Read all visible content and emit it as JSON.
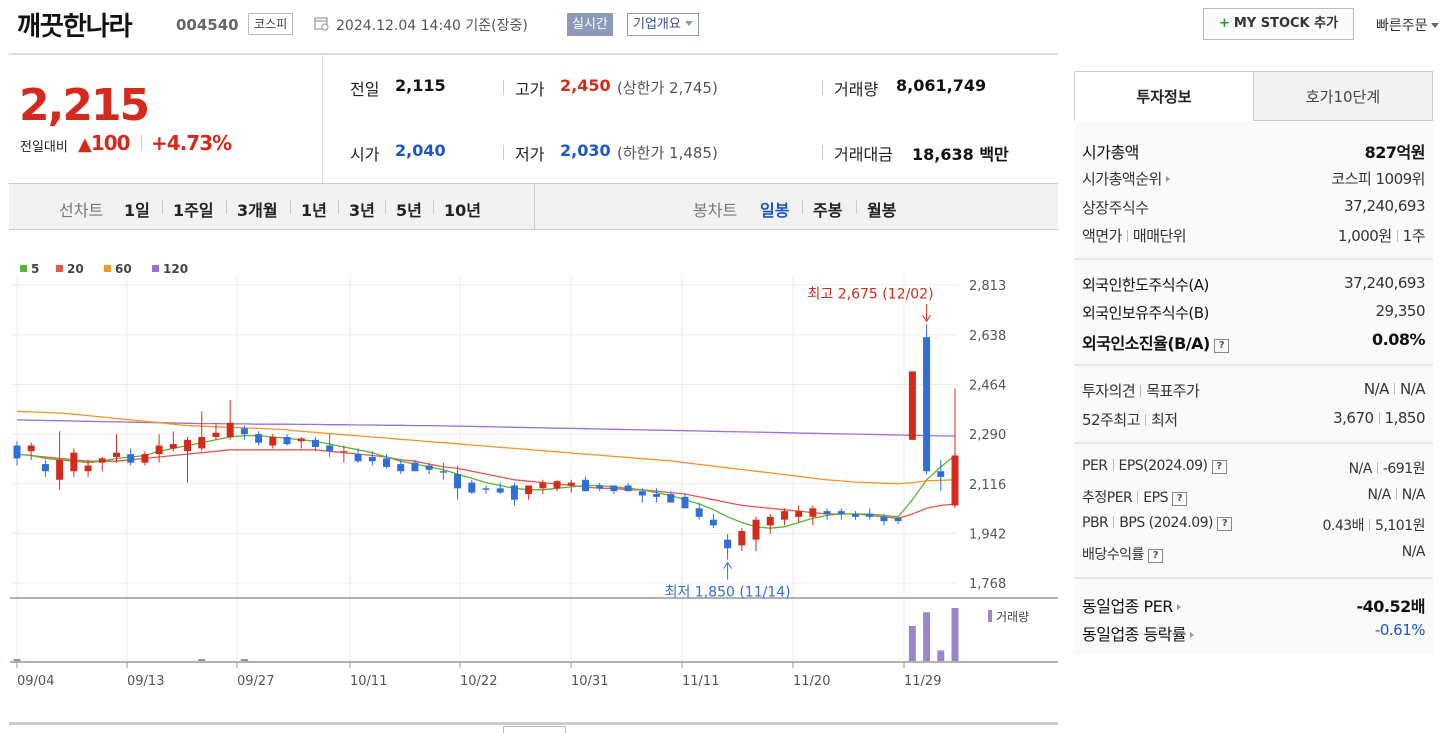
{
  "header": {
    "stock_name": "깨끗한나라",
    "stock_code": "004540",
    "market": "코스피",
    "date_text": "2024.12.04 14:40 기준(장중)",
    "realtime": "실시간",
    "company_overview": "기업개요",
    "mystock_plus": "+",
    "mystock_label": "MY STOCK 추가",
    "quick_order": "빠른주문"
  },
  "price": {
    "current": "2,215",
    "diff_label": "전일대비",
    "diff_arrow": "▲",
    "diff_value": "100",
    "diff_pct": "+4.73%"
  },
  "quote": {
    "prev_label": "전일",
    "prev_value": "2,115",
    "open_label": "시가",
    "open_value": "2,040",
    "high_label": "고가",
    "high_value": "2,450",
    "upper_limit": "(상한가 2,745)",
    "low_label": "저가",
    "low_value": "2,030",
    "lower_limit": "(하한가 1,485)",
    "volume_label": "거래량",
    "volume_value": "8,061,749",
    "amount_label": "거래대금",
    "amount_value": "18,638 백만"
  },
  "periods": {
    "line_label": "선차트",
    "items": [
      "1일",
      "1주일",
      "3개월",
      "1년",
      "3년",
      "5년",
      "10년"
    ],
    "candle_label": "봉차트",
    "candle_items": [
      "일봉",
      "주봉",
      "월봉"
    ],
    "candle_active": "일봉"
  },
  "chart_data": {
    "type": "candlestick",
    "legend": [
      {
        "name": "5",
        "color": "#5cb531"
      },
      {
        "name": "20",
        "color": "#e05a4f"
      },
      {
        "name": "60",
        "color": "#f0952a"
      },
      {
        "name": "120",
        "color": "#9b6fd3"
      }
    ],
    "y_ticks": [
      2813,
      2638,
      2464,
      2290,
      2116,
      1942,
      1768
    ],
    "y_range": [
      1768,
      2813
    ],
    "x_labels": [
      "09/04",
      "09/13",
      "09/27",
      "10/11",
      "10/22",
      "10/31",
      "11/11",
      "11/20",
      "11/29"
    ],
    "high_annotation": "최고 2,675 (12/02)",
    "low_annotation": "최저 1,850 (11/14)",
    "volume_label": "거래량",
    "candles": [
      {
        "o": 2250,
        "h": 2265,
        "l": 2180,
        "c": 2205
      },
      {
        "o": 2230,
        "h": 2260,
        "l": 2200,
        "c": 2250
      },
      {
        "o": 2185,
        "h": 2200,
        "l": 2140,
        "c": 2160
      },
      {
        "o": 2130,
        "h": 2300,
        "l": 2095,
        "c": 2200
      },
      {
        "o": 2160,
        "h": 2240,
        "l": 2140,
        "c": 2225
      },
      {
        "o": 2160,
        "h": 2200,
        "l": 2140,
        "c": 2180
      },
      {
        "o": 2190,
        "h": 2210,
        "l": 2160,
        "c": 2205
      },
      {
        "o": 2210,
        "h": 2290,
        "l": 2190,
        "c": 2225
      },
      {
        "o": 2220,
        "h": 2240,
        "l": 2180,
        "c": 2190
      },
      {
        "o": 2190,
        "h": 2230,
        "l": 2180,
        "c": 2220
      },
      {
        "o": 2220,
        "h": 2290,
        "l": 2190,
        "c": 2250
      },
      {
        "o": 2240,
        "h": 2300,
        "l": 2230,
        "c": 2255
      },
      {
        "o": 2230,
        "h": 2280,
        "l": 2120,
        "c": 2270
      },
      {
        "o": 2240,
        "h": 2370,
        "l": 2230,
        "c": 2280
      },
      {
        "o": 2280,
        "h": 2330,
        "l": 2270,
        "c": 2295
      },
      {
        "o": 2280,
        "h": 2410,
        "l": 2270,
        "c": 2330
      },
      {
        "o": 2310,
        "h": 2320,
        "l": 2270,
        "c": 2290
      },
      {
        "o": 2290,
        "h": 2300,
        "l": 2250,
        "c": 2260
      },
      {
        "o": 2250,
        "h": 2290,
        "l": 2240,
        "c": 2280
      },
      {
        "o": 2280,
        "h": 2290,
        "l": 2250,
        "c": 2255
      },
      {
        "o": 2265,
        "h": 2280,
        "l": 2240,
        "c": 2275
      },
      {
        "o": 2270,
        "h": 2280,
        "l": 2230,
        "c": 2245
      },
      {
        "o": 2250,
        "h": 2290,
        "l": 2210,
        "c": 2230
      },
      {
        "o": 2230,
        "h": 2250,
        "l": 2190,
        "c": 2230
      },
      {
        "o": 2220,
        "h": 2240,
        "l": 2190,
        "c": 2195
      },
      {
        "o": 2210,
        "h": 2230,
        "l": 2180,
        "c": 2195
      },
      {
        "o": 2205,
        "h": 2220,
        "l": 2170,
        "c": 2175
      },
      {
        "o": 2185,
        "h": 2200,
        "l": 2150,
        "c": 2160
      },
      {
        "o": 2190,
        "h": 2200,
        "l": 2160,
        "c": 2160
      },
      {
        "o": 2180,
        "h": 2190,
        "l": 2150,
        "c": 2165
      },
      {
        "o": 2160,
        "h": 2190,
        "l": 2130,
        "c": 2155
      },
      {
        "o": 2150,
        "h": 2180,
        "l": 2060,
        "c": 2100
      },
      {
        "o": 2120,
        "h": 2130,
        "l": 2080,
        "c": 2085
      },
      {
        "o": 2100,
        "h": 2110,
        "l": 2080,
        "c": 2095
      },
      {
        "o": 2100,
        "h": 2120,
        "l": 2080,
        "c": 2085
      },
      {
        "o": 2110,
        "h": 2120,
        "l": 2040,
        "c": 2060
      },
      {
        "o": 2080,
        "h": 2110,
        "l": 2060,
        "c": 2110
      },
      {
        "o": 2100,
        "h": 2130,
        "l": 2080,
        "c": 2120
      },
      {
        "o": 2100,
        "h": 2130,
        "l": 2090,
        "c": 2125
      },
      {
        "o": 2110,
        "h": 2130,
        "l": 2085,
        "c": 2120
      },
      {
        "o": 2130,
        "h": 2140,
        "l": 2090,
        "c": 2090
      },
      {
        "o": 2110,
        "h": 2120,
        "l": 2090,
        "c": 2100
      },
      {
        "o": 2110,
        "h": 2110,
        "l": 2080,
        "c": 2090
      },
      {
        "o": 2110,
        "h": 2120,
        "l": 2090,
        "c": 2090
      },
      {
        "o": 2090,
        "h": 2100,
        "l": 2050,
        "c": 2075
      },
      {
        "o": 2080,
        "h": 2100,
        "l": 2050,
        "c": 2070
      },
      {
        "o": 2080,
        "h": 2090,
        "l": 2050,
        "c": 2050
      },
      {
        "o": 2070,
        "h": 2080,
        "l": 2030,
        "c": 2030
      },
      {
        "o": 2030,
        "h": 2050,
        "l": 1990,
        "c": 2000
      },
      {
        "o": 1990,
        "h": 2010,
        "l": 1960,
        "c": 1970
      },
      {
        "o": 1920,
        "h": 1940,
        "l": 1850,
        "c": 1890
      },
      {
        "o": 1900,
        "h": 1960,
        "l": 1880,
        "c": 1950
      },
      {
        "o": 1920,
        "h": 2000,
        "l": 1880,
        "c": 1990
      },
      {
        "o": 1970,
        "h": 2010,
        "l": 1940,
        "c": 2000
      },
      {
        "o": 1990,
        "h": 2030,
        "l": 1970,
        "c": 2020
      },
      {
        "o": 2000,
        "h": 2040,
        "l": 1980,
        "c": 2020
      },
      {
        "o": 2000,
        "h": 2040,
        "l": 1970,
        "c": 2030
      },
      {
        "o": 2020,
        "h": 2030,
        "l": 1990,
        "c": 2010
      },
      {
        "o": 2020,
        "h": 2030,
        "l": 1990,
        "c": 2010
      },
      {
        "o": 2010,
        "h": 2020,
        "l": 1990,
        "c": 2000
      },
      {
        "o": 2010,
        "h": 2030,
        "l": 1990,
        "c": 2000
      },
      {
        "o": 2000,
        "h": 2010,
        "l": 1970,
        "c": 1985
      },
      {
        "o": 1995,
        "h": 2000,
        "l": 1975,
        "c": 1985
      },
      {
        "o": 2270,
        "h": 2510,
        "l": 2270,
        "c": 2510
      },
      {
        "o": 2630,
        "h": 2675,
        "l": 2150,
        "c": 2160
      },
      {
        "o": 2160,
        "h": 2200,
        "l": 2090,
        "c": 2140
      },
      {
        "o": 2040,
        "h": 2450,
        "l": 2030,
        "c": 2215
      }
    ],
    "ma5": [
      2220,
      2215,
      2205,
      2200,
      2195,
      2190,
      2195,
      2205,
      2210,
      2215,
      2230,
      2240,
      2250,
      2260,
      2270,
      2280,
      2285,
      2285,
      2280,
      2275,
      2270,
      2265,
      2255,
      2245,
      2235,
      2225,
      2210,
      2195,
      2185,
      2175,
      2165,
      2150,
      2135,
      2120,
      2110,
      2100,
      2095,
      2095,
      2100,
      2105,
      2110,
      2110,
      2105,
      2100,
      2095,
      2085,
      2075,
      2060,
      2045,
      2025,
      2000,
      1980,
      1965,
      1960,
      1965,
      1980,
      1995,
      2005,
      2010,
      2010,
      2010,
      2005,
      2000,
      2060,
      2130,
      2175,
      2215
    ],
    "ma20": [
      2220,
      2215,
      2210,
      2205,
      2200,
      2195,
      2195,
      2195,
      2200,
      2205,
      2210,
      2215,
      2220,
      2225,
      2230,
      2235,
      2235,
      2235,
      2235,
      2235,
      2235,
      2235,
      2230,
      2225,
      2220,
      2215,
      2210,
      2200,
      2195,
      2185,
      2175,
      2170,
      2160,
      2150,
      2140,
      2130,
      2125,
      2120,
      2115,
      2110,
      2105,
      2100,
      2100,
      2095,
      2095,
      2090,
      2085,
      2080,
      2070,
      2060,
      2050,
      2040,
      2035,
      2030,
      2025,
      2020,
      2015,
      2010,
      2010,
      2010,
      2005,
      2000,
      1995,
      2010,
      2030,
      2040,
      2045
    ],
    "ma60": [
      2370,
      2368,
      2366,
      2364,
      2360,
      2355,
      2350,
      2345,
      2340,
      2335,
      2330,
      2325,
      2320,
      2318,
      2316,
      2314,
      2312,
      2310,
      2308,
      2305,
      2300,
      2296,
      2292,
      2288,
      2284,
      2280,
      2276,
      2272,
      2268,
      2264,
      2260,
      2256,
      2252,
      2248,
      2244,
      2240,
      2236,
      2232,
      2228,
      2224,
      2220,
      2216,
      2212,
      2208,
      2204,
      2200,
      2196,
      2190,
      2184,
      2178,
      2172,
      2166,
      2160,
      2154,
      2148,
      2142,
      2136,
      2130,
      2126,
      2122,
      2120,
      2118,
      2116,
      2120,
      2126,
      2128,
      2130
    ],
    "ma120": [
      2340,
      2339,
      2338,
      2337,
      2336,
      2335,
      2334,
      2333,
      2332,
      2331,
      2330,
      2329,
      2328,
      2327,
      2327,
      2326,
      2326,
      2325,
      2325,
      2325,
      2324,
      2324,
      2323,
      2323,
      2322,
      2322,
      2321,
      2321,
      2320,
      2320,
      2319,
      2318,
      2317,
      2316,
      2315,
      2314,
      2313,
      2312,
      2311,
      2310,
      2309,
      2308,
      2307,
      2306,
      2305,
      2304,
      2303,
      2302,
      2301,
      2300,
      2299,
      2298,
      2297,
      2296,
      2295,
      2294,
      2293,
      2292,
      2291,
      2290,
      2289,
      2288,
      2287,
      2286,
      2285,
      2284,
      2283
    ],
    "volumes": [
      0.02,
      0,
      0,
      0,
      0,
      0,
      0,
      0,
      0,
      0,
      0,
      0,
      0,
      0.02,
      0,
      0,
      0.02,
      0,
      0,
      0,
      0,
      0,
      0,
      0,
      0,
      0,
      0,
      0,
      0,
      0,
      0,
      0,
      0,
      0,
      0,
      0,
      0,
      0,
      0,
      0,
      0,
      0,
      0,
      0,
      0,
      0,
      0,
      0,
      0,
      0,
      0,
      0,
      0,
      0,
      0,
      0,
      0,
      0,
      0,
      0,
      0,
      0,
      0,
      0.66,
      0.92,
      0.2,
      1.0
    ]
  },
  "tabs": {
    "invest": "투자정보",
    "hoga": "호가10단계"
  },
  "invest": {
    "mcap_label": "시가총액",
    "mcap_value": "827억원",
    "mcap_rank_label": "시가총액순위",
    "mcap_rank_value": "코스피 1009위",
    "shares_label": "상장주식수",
    "shares_value": "37,240,693",
    "par_label": "액면가",
    "unit_label": "매매단위",
    "par_value": "1,000원",
    "unit_value": "1주",
    "foreign_limit_label": "외국인한도주식수(A)",
    "foreign_limit_value": "37,240,693",
    "foreign_hold_label": "외국인보유주식수(B)",
    "foreign_hold_value": "29,350",
    "foreign_ratio_label": "외국인소진율(B/A)",
    "foreign_ratio_value": "0.08%",
    "opinion_label": "투자의견",
    "target_label": "목표주가",
    "opinion_value": "N/A",
    "target_value": "N/A",
    "high52_label": "52주최고",
    "low52_label": "최저",
    "high52_value": "3,670",
    "low52_value": "1,850",
    "per_label": "PER",
    "eps_label": "EPS(2024.09)",
    "per_value": "N/A",
    "eps_value": "-691원",
    "est_per_label": "추정PER",
    "est_eps_label": "EPS",
    "est_per_value": "N/A",
    "est_eps_value": "N/A",
    "pbr_label": "PBR",
    "bps_label": "BPS (2024.09)",
    "pbr_value": "0.43배",
    "bps_value": "5,101원",
    "div_label": "배당수익률",
    "div_value": "N/A",
    "sector_per_label": "동일업종 PER",
    "sector_per_value": "-40.52배",
    "sector_chg_label": "동일업종 등락률",
    "sector_chg_value": "-0.61%",
    "qmark": "?"
  }
}
